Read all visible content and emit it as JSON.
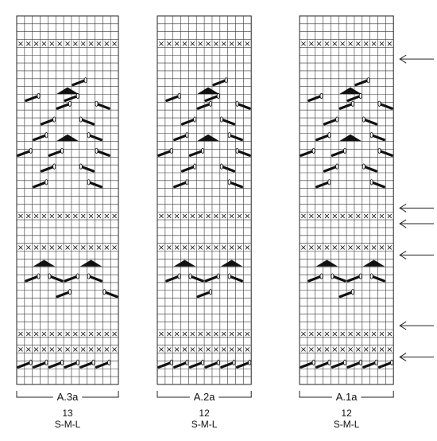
{
  "diagrams": [
    {
      "name": "A.3a",
      "stitch_count": "13",
      "sizes": "S-M-L",
      "columns": 13,
      "right_extra_column": true
    },
    {
      "name": "A.2a",
      "stitch_count": "12",
      "sizes": "S-M-L",
      "columns": 12,
      "right_extra_column": true
    },
    {
      "name": "A.1a",
      "stitch_count": "12",
      "sizes": "S-M-L",
      "columns": 12,
      "right_extra_column": false
    }
  ],
  "row_count": 47,
  "x_rows": [
    3,
    25,
    29,
    40,
    42
  ],
  "arrow_rows": [
    5,
    24,
    26,
    30,
    39,
    43
  ],
  "arrow_side": "right-of-A.1a",
  "symbol_legend": {
    "x": "cross-stitch-symbol",
    "triangle": "triangle-symbol",
    "bar": "slanted-bar-symbol"
  }
}
